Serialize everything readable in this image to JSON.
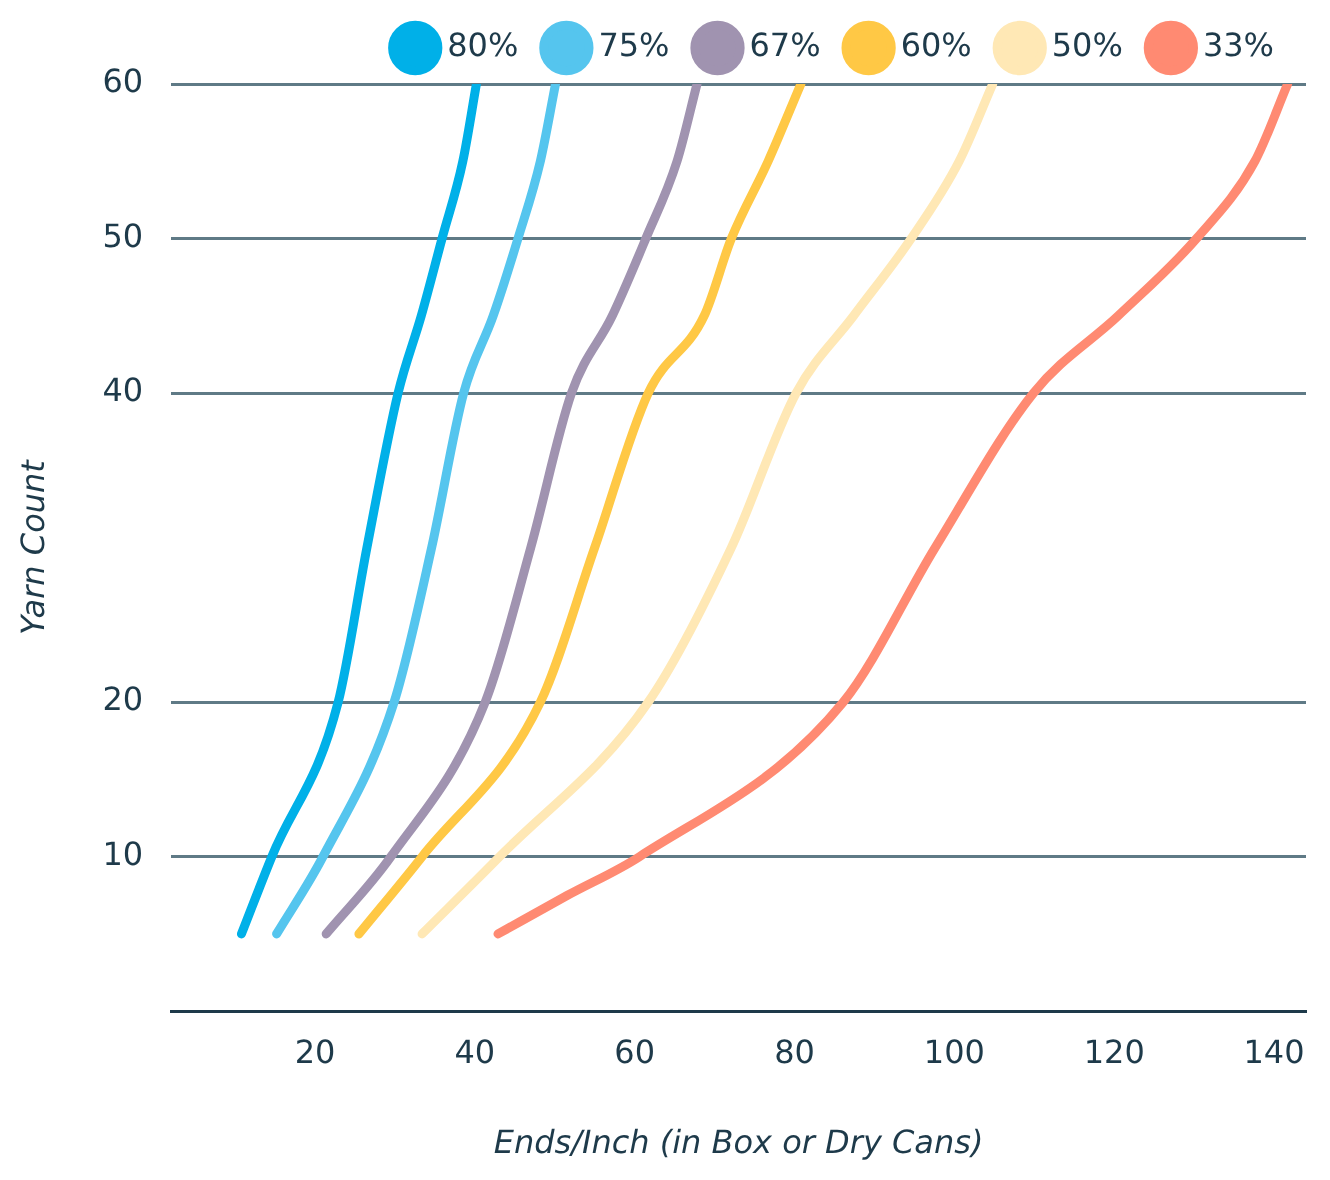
{
  "chart_data": {
    "type": "line",
    "xlabel": "Ends/Inch (in Box or Dry Cans)",
    "ylabel": "Yarn Count",
    "xlim": [
      2,
      144
    ],
    "xticks": [
      20,
      40,
      60,
      80,
      100,
      120,
      140
    ],
    "ylim": [
      0,
      60
    ],
    "yticks": [
      10,
      20,
      40,
      50,
      60
    ],
    "grid": "y",
    "legend": "top right",
    "marker": "none",
    "line_style": "solid",
    "series": [
      {
        "name": "80%",
        "color": "#00b0e8",
        "x": [
          10.8,
          14.6,
          22.9,
          26.5,
          30.4,
          33.3,
          35.9,
          38.5,
          40.2
        ],
        "values": [
          5,
          10,
          20,
          30,
          40,
          45,
          50,
          55,
          60
        ]
      },
      {
        "name": "75%",
        "color": "#55c5ee",
        "x": [
          15.2,
          21.0,
          29.9,
          34.6,
          38.6,
          42.3,
          45.4,
          48.2,
          50.1
        ],
        "values": [
          5,
          10,
          20,
          30,
          40,
          45,
          50,
          55,
          60
        ]
      },
      {
        "name": "67%",
        "color": "#a093b0",
        "x": [
          21.4,
          29.5,
          41.3,
          47.0,
          52.1,
          57.2,
          61.4,
          65.3,
          67.8
        ],
        "values": [
          5,
          10,
          20,
          30,
          40,
          45,
          50,
          55,
          60
        ]
      },
      {
        "name": "60%",
        "color": "#ffc845",
        "x": [
          25.5,
          33.4,
          48.2,
          55.0,
          61.7,
          68.7,
          72.1,
          76.7,
          80.8
        ],
        "values": [
          5,
          10,
          20,
          30,
          40,
          45,
          50,
          55,
          60
        ]
      },
      {
        "name": "50%",
        "color": "#ffe8b5",
        "x": [
          33.4,
          43.1,
          61.7,
          72.1,
          80.2,
          87.4,
          94.6,
          100.6,
          104.8
        ],
        "values": [
          5,
          10,
          20,
          30,
          40,
          45,
          50,
          55,
          60
        ]
      },
      {
        "name": "33%",
        "color": "#ff8a72",
        "x": [
          42.9,
          51.6,
          60.6,
          86.1,
          97.6,
          109.9,
          120.5,
          130.3,
          137.6,
          141.7
        ],
        "values": [
          5,
          7.5,
          10,
          20,
          30,
          40,
          45,
          50,
          55,
          60
        ]
      }
    ]
  }
}
